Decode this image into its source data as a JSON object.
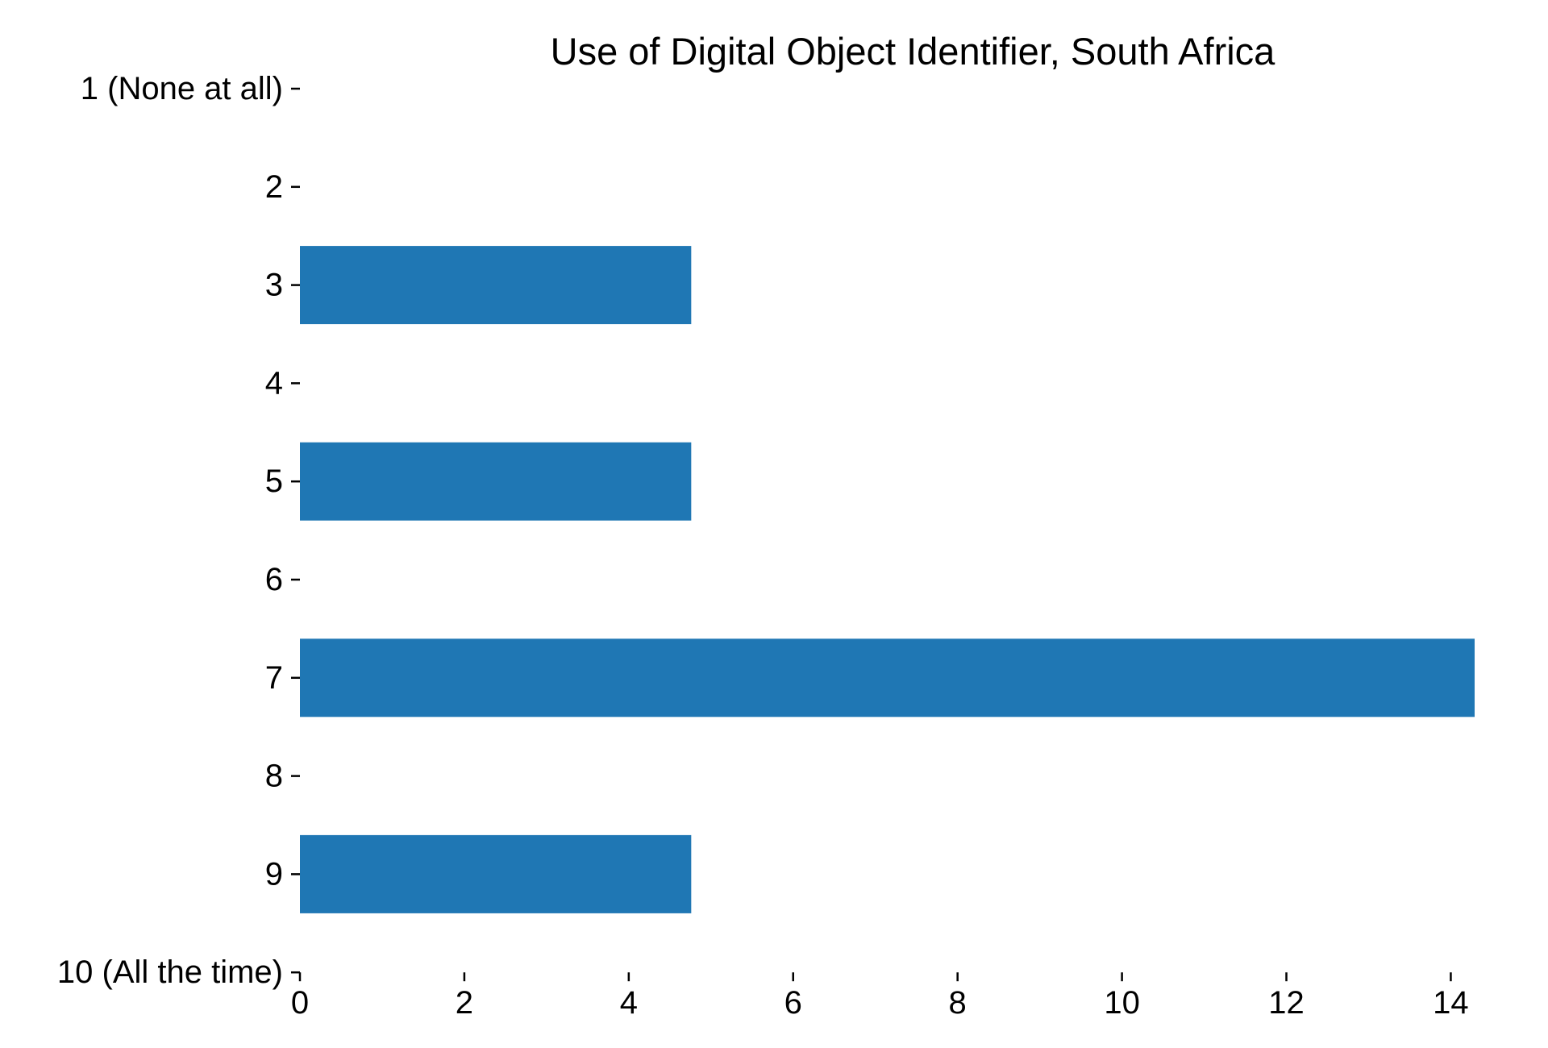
{
  "chart_data": {
    "type": "bar",
    "orientation": "horizontal",
    "title": "Use of Digital Object Identifier, South Africa",
    "xlabel": "",
    "ylabel": "",
    "categories": [
      "1 (None at all)",
      "2",
      "3",
      "4",
      "5",
      "6",
      "7",
      "8",
      "9",
      "10 (All the time)"
    ],
    "values": [
      0,
      0,
      4.76,
      0,
      4.76,
      0,
      14.29,
      0,
      4.76,
      0
    ],
    "xlim": [
      0,
      14.29
    ],
    "xticks": [
      0,
      2,
      4,
      6,
      8,
      10,
      12,
      14
    ],
    "xtick_labels": [
      "0",
      "2",
      "4",
      "6",
      "8",
      "10",
      "12",
      "14"
    ],
    "grid": false,
    "legend": "none",
    "bar_color": "#1f77b4"
  }
}
